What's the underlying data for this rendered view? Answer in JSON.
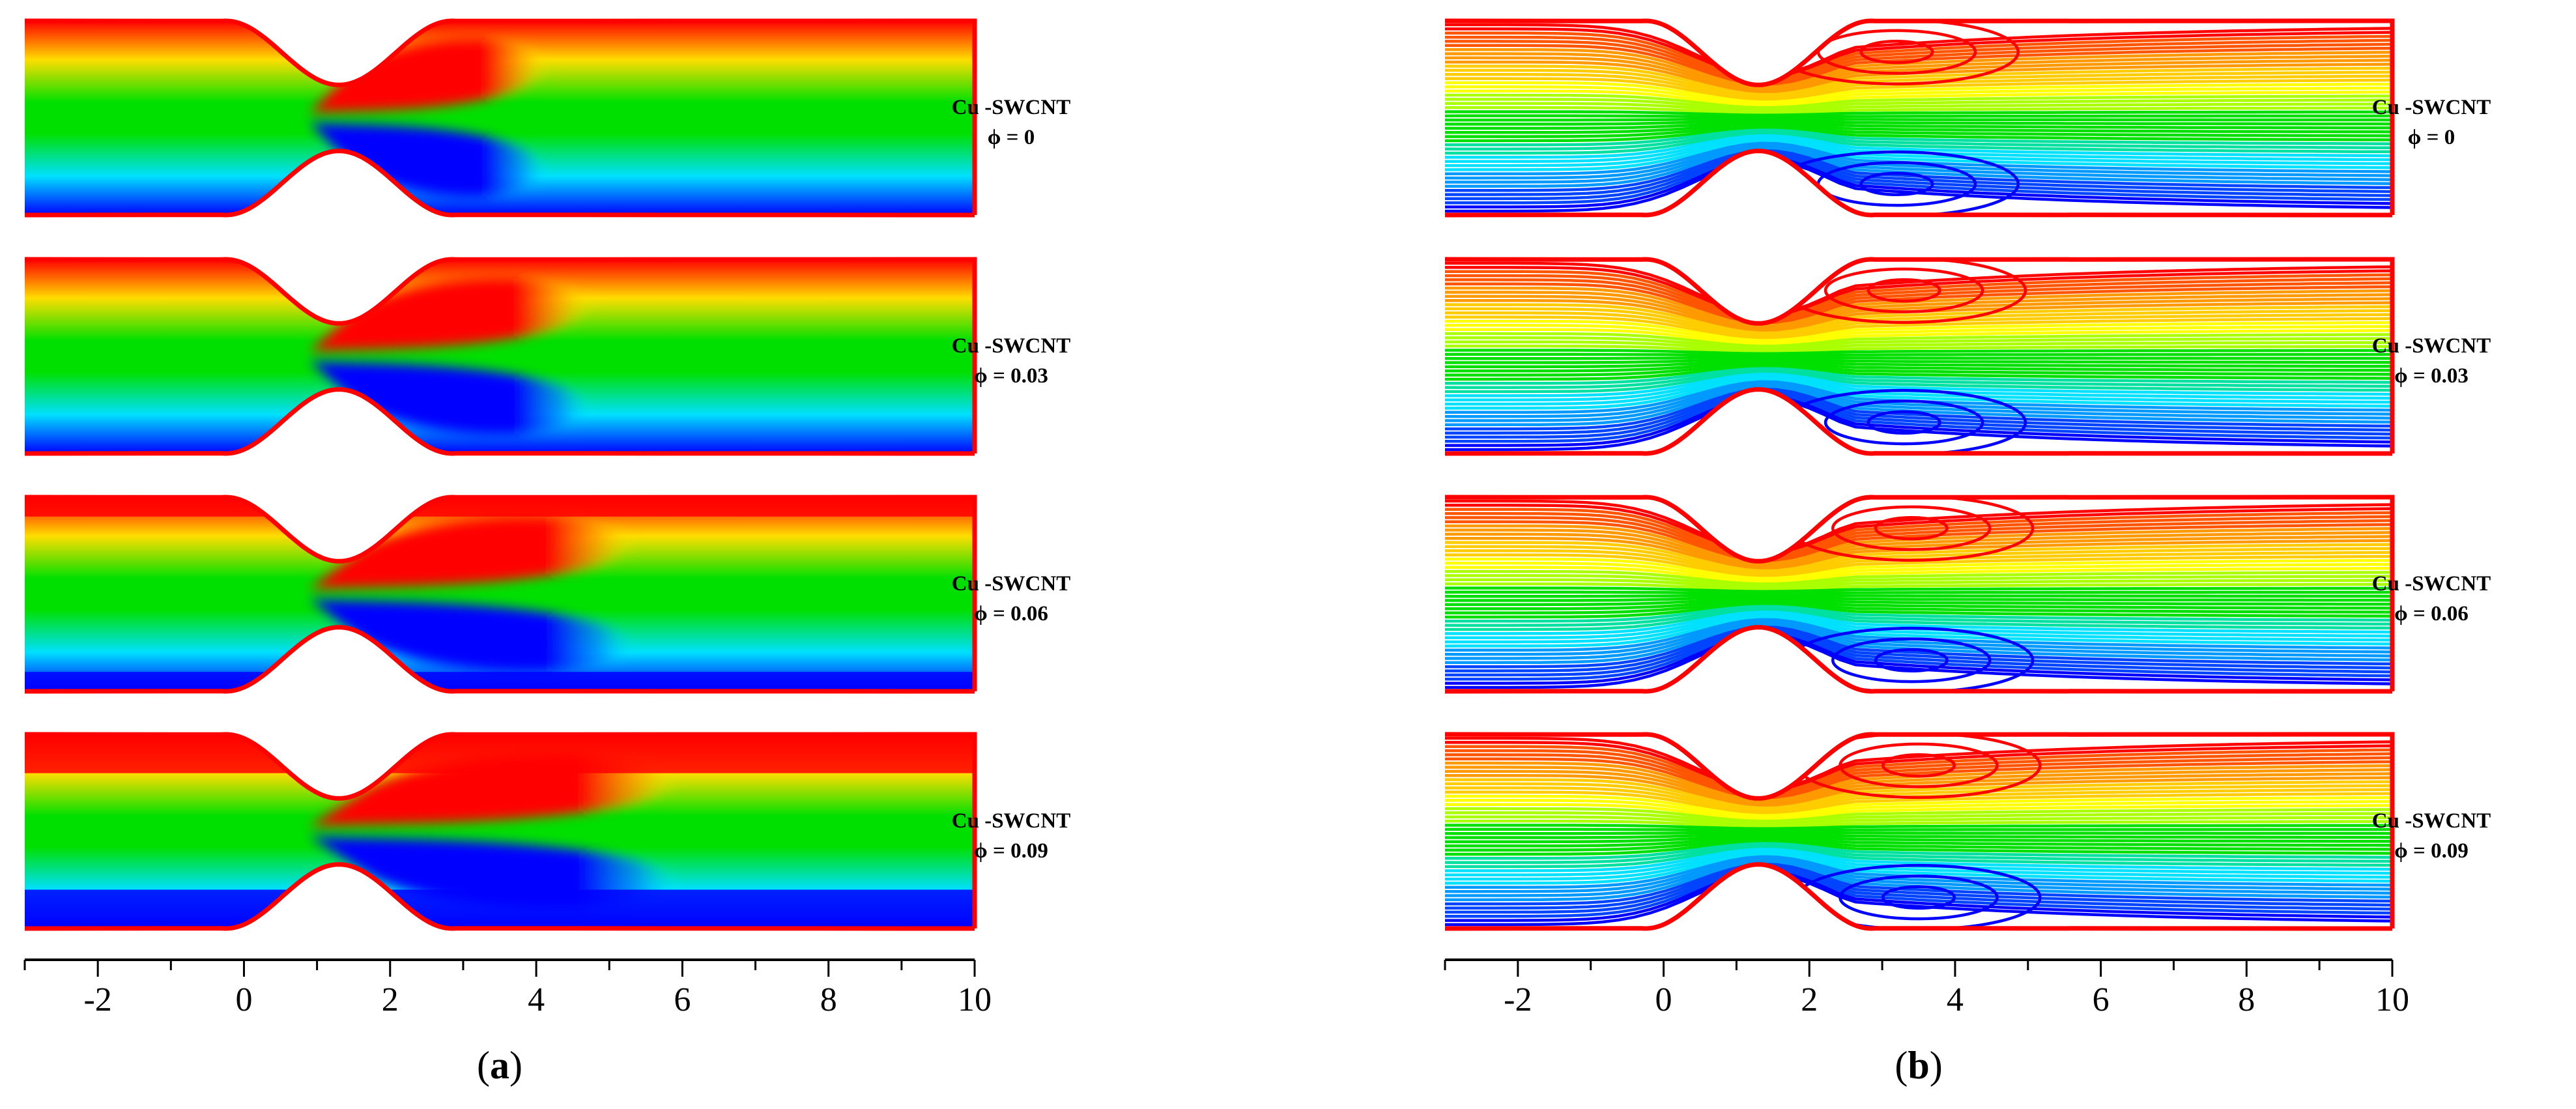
{
  "panels": [
    {
      "id": "a",
      "caption_letter": "a",
      "style": "contour-fill",
      "cases": [
        {
          "label": "Cu -SWCNT",
          "phi_text": "ϕ =  0"
        },
        {
          "label": "Cu -SWCNT",
          "phi_text": "ϕ =  0.03"
        },
        {
          "label": "Cu -SWCNT",
          "phi_text": "ϕ =  0.06"
        },
        {
          "label": "Cu -SWCNT",
          "phi_text": "ϕ =  0.09"
        }
      ],
      "axis": {
        "min": -3,
        "max": 10,
        "tick_labels": [
          "-2",
          "0",
          "2",
          "4",
          "6",
          "8",
          "10"
        ],
        "tick_values": [
          -2,
          0,
          2,
          4,
          6,
          8,
          10
        ]
      }
    },
    {
      "id": "b",
      "caption_letter": "b",
      "style": "streamlines",
      "cases": [
        {
          "label": "Cu -SWCNT",
          "phi_text": "ϕ =  0"
        },
        {
          "label": "Cu -SWCNT",
          "phi_text": "ϕ =  0.03"
        },
        {
          "label": "Cu -SWCNT",
          "phi_text": "ϕ =  0.06"
        },
        {
          "label": "Cu -SWCNT",
          "phi_text": "ϕ =  0.09"
        }
      ],
      "axis": {
        "min": -3,
        "max": 10,
        "tick_labels": [
          "-2",
          "0",
          "2",
          "4",
          "6",
          "8",
          "10"
        ],
        "tick_values": [
          -2,
          0,
          2,
          4,
          6,
          8,
          10
        ]
      }
    }
  ],
  "colors": {
    "high": "#ff0000",
    "mid_high": "#ffff00",
    "mid": "#00e000",
    "mid_low": "#00ffff",
    "low": "#0000ff",
    "wall": "#ff0000"
  }
}
